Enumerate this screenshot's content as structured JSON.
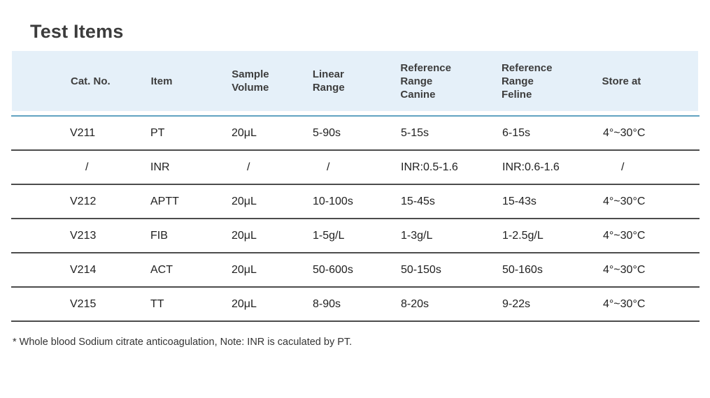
{
  "title": "Test Items",
  "table": {
    "columns": [
      "Cat. No.",
      "Item",
      "Sample\nVolume",
      "Linear\nRange",
      "Reference\nRange\nCanine",
      "Reference\nRange\nFeline",
      "Store at"
    ],
    "rows": [
      [
        "V211",
        "PT",
        "20μL",
        "5-90s",
        "5-15s",
        "6-15s",
        "4°~30°C"
      ],
      [
        "/",
        "INR",
        "/",
        "/",
        "INR:0.5-1.6",
        "INR:0.6-1.6",
        "/"
      ],
      [
        "V212",
        "APTT",
        "20μL",
        "10-100s",
        "15-45s",
        "15-43s",
        "4°~30°C"
      ],
      [
        "V213",
        "FIB",
        "20μL",
        "1-5g/L",
        "1-3g/L",
        "1-2.5g/L",
        "4°~30°C"
      ],
      [
        "V214",
        "ACT",
        "20μL",
        "50-600s",
        "50-150s",
        "50-160s",
        "4°~30°C"
      ],
      [
        "V215",
        "TT",
        "20μL",
        "8-90s",
        "8-20s",
        "9-22s",
        "4°~30°C"
      ]
    ]
  },
  "footnote": "* Whole blood Sodium citrate anticoagulation, Note: INR is caculated by PT.",
  "colors": {
    "header_background": "#e5f0f9",
    "header_rule": "#61a2c1",
    "row_divider": "#4c4c4c",
    "title_text": "#3c3c3c",
    "body_text": "#212121"
  }
}
